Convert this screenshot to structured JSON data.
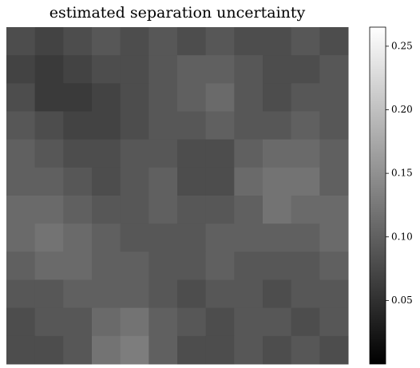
{
  "chart_data": {
    "type": "heatmap",
    "title": "estimated separation uncertainty",
    "colormap": "gray",
    "clim": [
      0,
      0.265
    ],
    "colorbar_ticks": [
      0.05,
      {
        "value": 0.1,
        "label": "0.10"
      },
      0.15,
      {
        "value": 0.2,
        "label": "0.20"
      },
      0.25
    ],
    "matrix": [
      [
        0.08,
        0.07,
        0.08,
        0.09,
        0.08,
        0.09,
        0.08,
        0.09,
        0.08,
        0.08,
        0.09,
        0.08
      ],
      [
        0.07,
        0.06,
        0.07,
        0.08,
        0.08,
        0.09,
        0.1,
        0.1,
        0.09,
        0.08,
        0.08,
        0.09
      ],
      [
        0.08,
        0.06,
        0.06,
        0.07,
        0.08,
        0.09,
        0.1,
        0.11,
        0.09,
        0.08,
        0.09,
        0.09
      ],
      [
        0.09,
        0.08,
        0.07,
        0.07,
        0.08,
        0.09,
        0.09,
        0.1,
        0.09,
        0.09,
        0.1,
        0.09
      ],
      [
        0.1,
        0.09,
        0.08,
        0.08,
        0.09,
        0.09,
        0.08,
        0.08,
        0.1,
        0.11,
        0.11,
        0.1
      ],
      [
        0.1,
        0.1,
        0.09,
        0.08,
        0.09,
        0.1,
        0.08,
        0.08,
        0.11,
        0.12,
        0.12,
        0.1
      ],
      [
        0.11,
        0.11,
        0.1,
        0.09,
        0.09,
        0.1,
        0.09,
        0.09,
        0.1,
        0.12,
        0.11,
        0.11
      ],
      [
        0.11,
        0.12,
        0.11,
        0.1,
        0.09,
        0.09,
        0.09,
        0.1,
        0.1,
        0.1,
        0.1,
        0.11
      ],
      [
        0.1,
        0.11,
        0.11,
        0.1,
        0.1,
        0.09,
        0.09,
        0.1,
        0.09,
        0.09,
        0.09,
        0.1
      ],
      [
        0.09,
        0.09,
        0.1,
        0.1,
        0.1,
        0.09,
        0.08,
        0.09,
        0.09,
        0.08,
        0.09,
        0.09
      ],
      [
        0.08,
        0.09,
        0.09,
        0.11,
        0.12,
        0.1,
        0.09,
        0.08,
        0.09,
        0.09,
        0.08,
        0.09
      ],
      [
        0.08,
        0.08,
        0.09,
        0.12,
        0.13,
        0.1,
        0.08,
        0.08,
        0.09,
        0.08,
        0.09,
        0.08
      ]
    ]
  }
}
